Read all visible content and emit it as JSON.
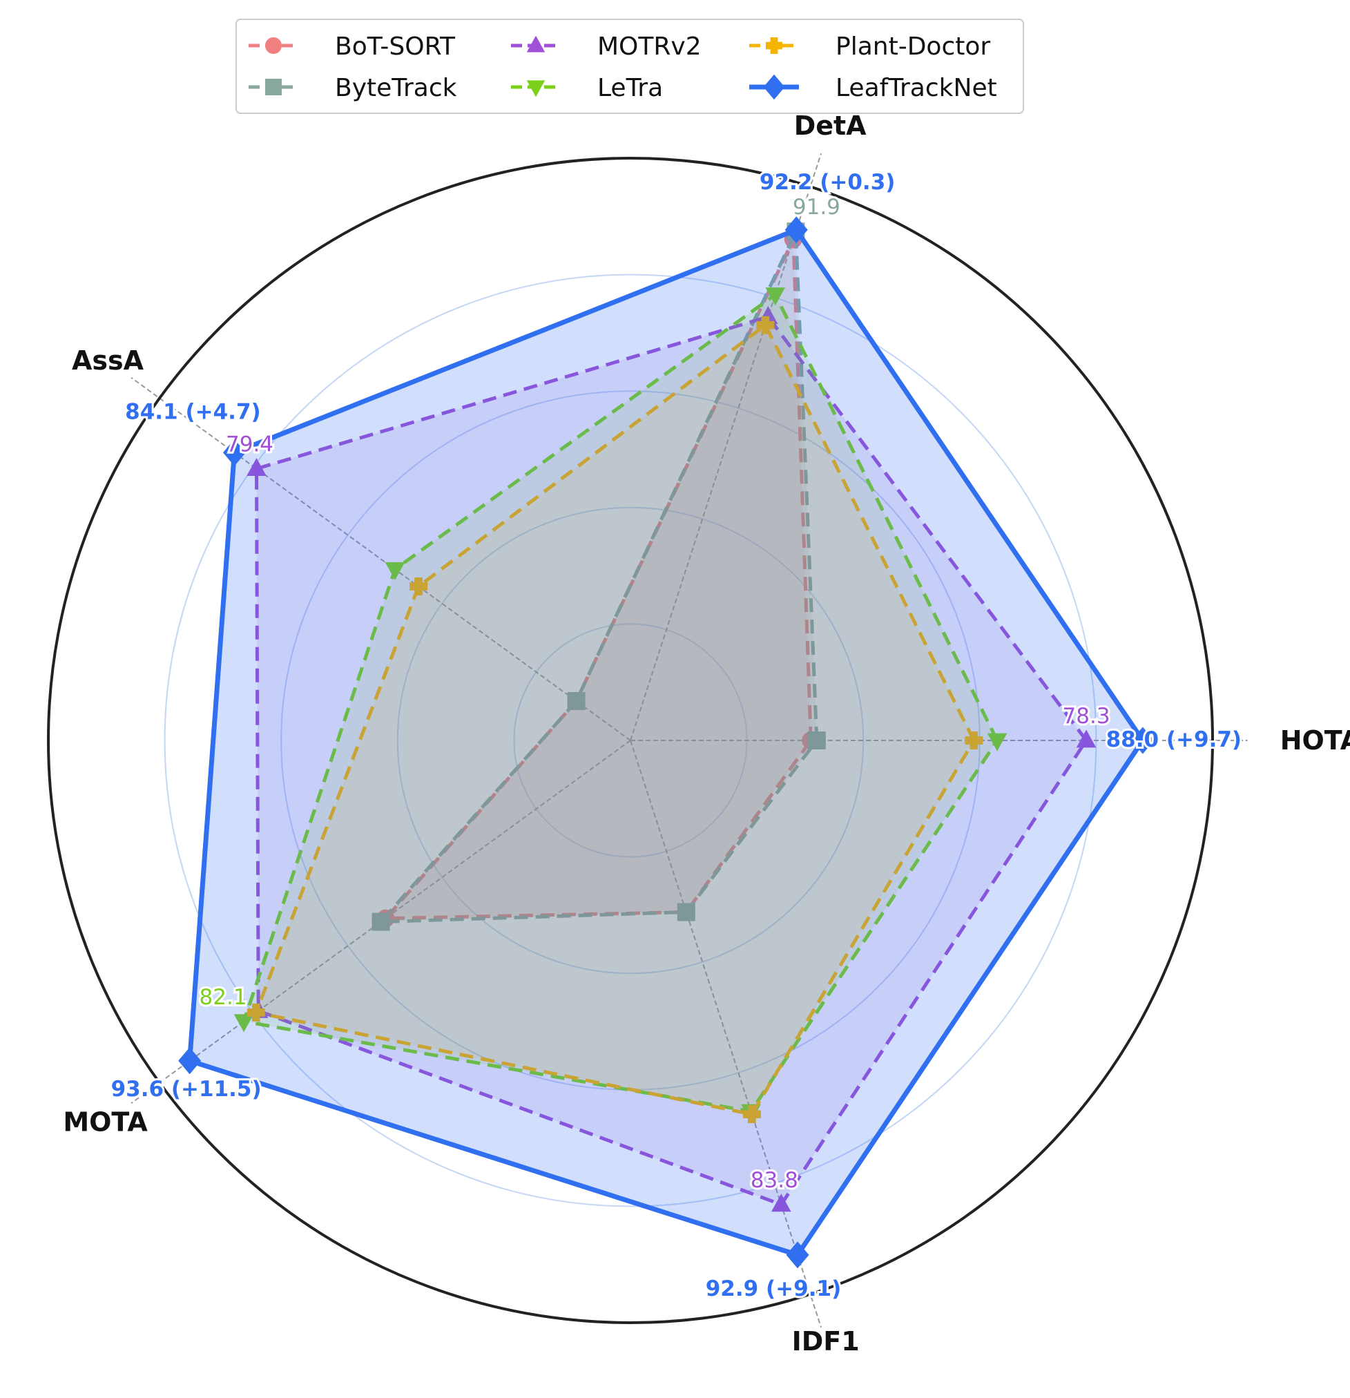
{
  "chart_data": {
    "type": "radar",
    "axes": [
      "HOTA",
      "DetA",
      "AssA",
      "MOTA",
      "IDF1"
    ],
    "radial_range": [
      0,
      100
    ],
    "series": [
      {
        "name": "BoT-SORT",
        "values": [
          31.0,
          90.5,
          11.5,
          52.0,
          31.0
        ],
        "color": "#f08080",
        "marker": "circle",
        "dash": true,
        "fill_opacity": 0.12
      },
      {
        "name": "ByteTrack",
        "values": [
          32.0,
          91.9,
          11.5,
          53.0,
          31.0
        ],
        "color": "#88a89e",
        "marker": "square",
        "dash": true,
        "fill_opacity": 0.12
      },
      {
        "name": "MOTRv2",
        "values": [
          78.3,
          76.5,
          79.4,
          79.0,
          83.8
        ],
        "color": "#a050d8",
        "marker": "triangle-up",
        "dash": true,
        "fill_opacity": 0.12
      },
      {
        "name": "LeTra",
        "values": [
          63.0,
          80.5,
          50.0,
          82.1,
          67.0
        ],
        "color": "#7bd11a",
        "marker": "triangle-down",
        "dash": true,
        "fill_opacity": 0.12
      },
      {
        "name": "Plant-Doctor",
        "values": [
          59.0,
          75.0,
          45.0,
          79.5,
          67.5
        ],
        "color": "#f5b400",
        "marker": "plus",
        "dash": true,
        "fill_opacity": 0.12
      },
      {
        "name": "LeafTrackNet",
        "values": [
          88.0,
          92.2,
          84.1,
          93.6,
          92.9
        ],
        "color": "#2f6ff0",
        "marker": "diamond",
        "dash": false,
        "fill_opacity": 0.22
      }
    ],
    "value_labels": [
      {
        "axis": "HOTA",
        "text": "78.3",
        "series": "MOTRv2"
      },
      {
        "axis": "DetA",
        "text": "91.9",
        "series": "ByteTrack"
      },
      {
        "axis": "AssA",
        "text": "79.4",
        "series": "MOTRv2"
      },
      {
        "axis": "MOTA",
        "text": "82.1",
        "series": "LeTra"
      },
      {
        "axis": "IDF1",
        "text": "83.8",
        "series": "MOTRv2"
      }
    ],
    "best_labels": [
      {
        "axis": "HOTA",
        "text": "88.0 (+9.7)"
      },
      {
        "axis": "DetA",
        "text": "92.2 (+0.3)"
      },
      {
        "axis": "AssA",
        "text": "84.1 (+4.7)"
      },
      {
        "axis": "MOTA",
        "text": "93.6 (+11.5)"
      },
      {
        "axis": "IDF1",
        "text": "92.9 (+9.1)"
      }
    ],
    "grid": true,
    "legend": "top-center",
    "title": "",
    "xlabel": "",
    "ylabel": ""
  }
}
